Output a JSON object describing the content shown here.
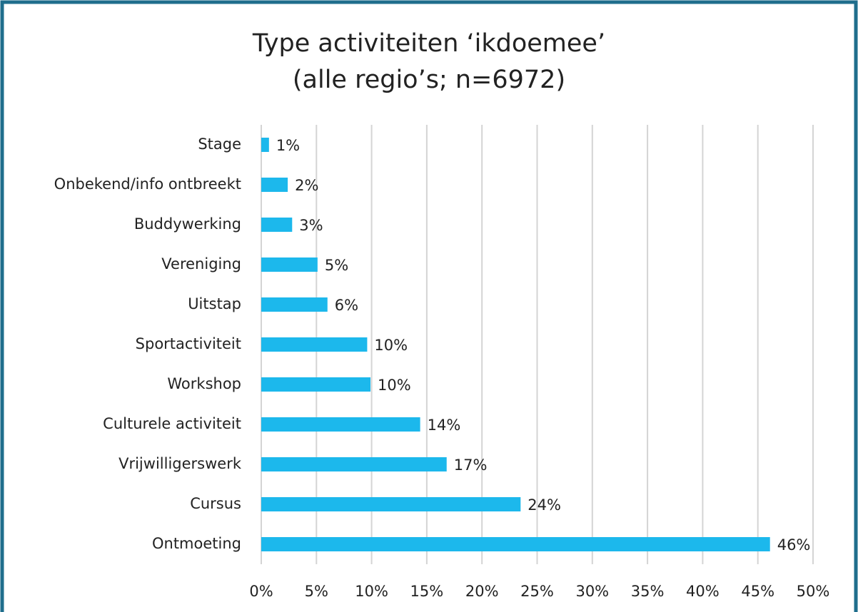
{
  "chart_data": {
    "type": "barh",
    "title": [
      "Type activiteiten ‘ikdoemee’",
      "(alle regio’s; n=6972)"
    ],
    "categories": [
      "Stage",
      "Onbekend/info ontbreekt",
      "Buddywerking",
      "Vereniging",
      "Uitstap",
      "Sportactiviteit",
      "Workshop",
      "Culturele activiteit",
      "Vrijwilligerswerk",
      "Cursus",
      "Ontmoeting"
    ],
    "values": [
      0.7,
      2.4,
      2.8,
      5.1,
      6.0,
      9.6,
      9.9,
      14.4,
      16.8,
      23.5,
      46.1
    ],
    "value_labels": [
      "1%",
      "2%",
      "3%",
      "5%",
      "6%",
      "10%",
      "10%",
      "14%",
      "17%",
      "24%",
      "46%"
    ],
    "color": "#1cb8ec",
    "xlim": [
      0,
      50
    ],
    "xticks": [
      {
        "value": 0,
        "label": "0%"
      },
      {
        "value": 5,
        "label": "5%"
      },
      {
        "value": 10,
        "label": "10%"
      },
      {
        "value": 15,
        "label": "15%"
      },
      {
        "value": 20,
        "label": "20%"
      },
      {
        "value": 25,
        "label": "25%"
      },
      {
        "value": 30,
        "label": "30%"
      },
      {
        "value": 35,
        "label": "35%"
      },
      {
        "value": 40,
        "label": "40%"
      },
      {
        "value": 45,
        "label": "45%"
      },
      {
        "value": 50,
        "label": "50%"
      }
    ],
    "grid": true
  }
}
